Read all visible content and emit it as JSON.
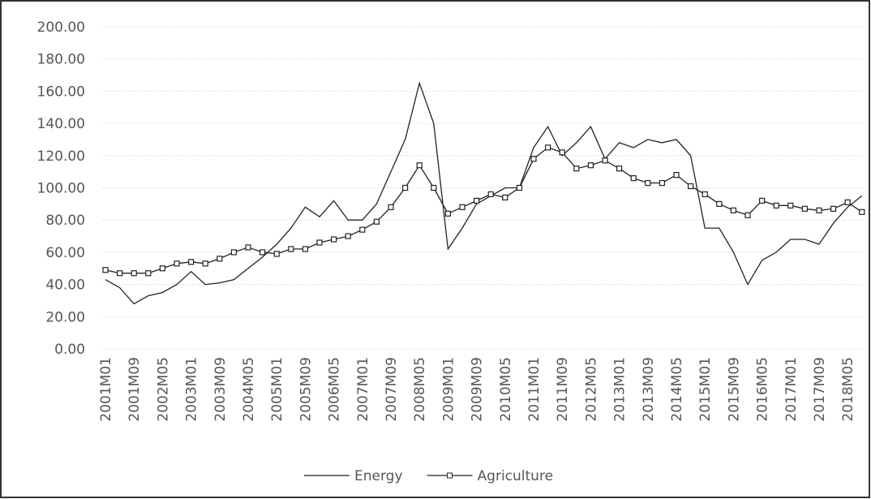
{
  "chart_data": {
    "type": "line",
    "categories": [
      "2001M01",
      null,
      "2001M09",
      null,
      "2002M05",
      null,
      "2003M01",
      null,
      "2003M09",
      null,
      "2004M05",
      null,
      "2005M01",
      null,
      "2005M09",
      null,
      "2006M05",
      null,
      "2007M01",
      null,
      "2007M09",
      null,
      "2008M05",
      null,
      "2009M01",
      null,
      "2009M09",
      null,
      "2010M05",
      null,
      "2011M01",
      null,
      "2011M09",
      null,
      "2012M05",
      null,
      "2013M01",
      null,
      "2013M09",
      null,
      "2014M05",
      null,
      "2015M01",
      null,
      "2015M09",
      null,
      "2016M05",
      null,
      "2017M01",
      null,
      "2017M09",
      null,
      "2018M05",
      null
    ],
    "series": [
      {
        "name": "Energy",
        "color": "#222222",
        "marker": false,
        "values": [
          43,
          38,
          28,
          33,
          35,
          40,
          48,
          40,
          41,
          43,
          50,
          57,
          65,
          75,
          88,
          82,
          92,
          80,
          80,
          90,
          110,
          130,
          165,
          140,
          62,
          75,
          90,
          95,
          100,
          100,
          125,
          138,
          120,
          128,
          138,
          118,
          128,
          125,
          130,
          128,
          130,
          120,
          75,
          75,
          60,
          40,
          55,
          60,
          68,
          68,
          65,
          78,
          88,
          95
        ]
      },
      {
        "name": "Agriculture",
        "color": "#222222",
        "marker": true,
        "values": [
          49,
          47,
          47,
          47,
          50,
          53,
          54,
          53,
          56,
          60,
          63,
          60,
          59,
          62,
          62,
          66,
          68,
          70,
          74,
          79,
          88,
          100,
          114,
          100,
          84,
          88,
          92,
          96,
          94,
          100,
          118,
          125,
          122,
          112,
          114,
          117,
          112,
          106,
          103,
          103,
          108,
          101,
          96,
          90,
          86,
          83,
          92,
          89,
          89,
          87,
          86,
          87,
          91,
          85
        ]
      }
    ],
    "ylim": [
      0,
      200
    ],
    "yticks": [
      {
        "value": 0,
        "label": "0.00"
      },
      {
        "value": 20,
        "label": "20.00"
      },
      {
        "value": 40,
        "label": "40.00"
      },
      {
        "value": 60,
        "label": "60.00"
      },
      {
        "value": 80,
        "label": "80.00"
      },
      {
        "value": 100,
        "label": "100.00"
      },
      {
        "value": 120,
        "label": "120.00"
      },
      {
        "value": 140,
        "label": "140.00"
      },
      {
        "value": 160,
        "label": "160.00"
      },
      {
        "value": 180,
        "label": "180.00"
      },
      {
        "value": 200,
        "label": "200.00"
      }
    ],
    "grid": true,
    "legend": "bottom"
  }
}
